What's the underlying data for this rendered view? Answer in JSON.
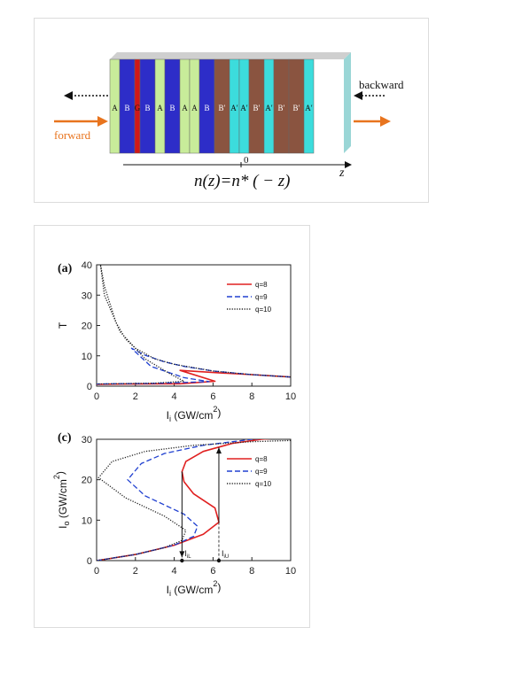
{
  "figure_top": {
    "layers": [
      "A",
      "B",
      "G",
      "B",
      "A",
      "B",
      "A",
      "A",
      "B",
      "B′",
      "A′",
      "A′",
      "B′",
      "A′",
      "B′",
      "B′",
      "A′"
    ],
    "layer_colors": {
      "A": "#c8ec9a",
      "B": "#2d2dc8",
      "G": "#d01818",
      "B′": "#8a5440",
      "A′": "#3cdcdc"
    },
    "label_backward": "backward",
    "label_forward": "forward",
    "axis_zero": "0",
    "axis_z": "z",
    "formula": "n(z)=n* ( − z)",
    "arrow_color": "#e8741e"
  },
  "chart_data": [
    {
      "type": "line",
      "panel_label": "(a)",
      "xlabel": "I",
      "xlabel_sub": "i",
      "xlabel_unit": " (GW/cm",
      "xlabel_sup": "2",
      "xlabel_close": ")",
      "ylabel": "T",
      "xlim": [
        0,
        10
      ],
      "ylim": [
        0,
        40
      ],
      "xticks": [
        "0",
        "2",
        "4",
        "6",
        "8",
        "10"
      ],
      "yticks": [
        "0",
        "10",
        "20",
        "30",
        "40"
      ],
      "legend": [
        "q=8",
        "q=9",
        "q=10"
      ],
      "series": [
        {
          "name": "q=8",
          "color": "#e02020",
          "dash": "solid",
          "x": [
            10,
            8,
            6,
            5,
            4.3,
            6.1,
            4.3,
            1.5,
            0
          ],
          "y": [
            3.0,
            3.8,
            4.5,
            4.9,
            5.2,
            1.6,
            0.8,
            0.7,
            0.6
          ]
        },
        {
          "name": "q=9",
          "color": "#2040d0",
          "dash": "dashed",
          "x": [
            10,
            8,
            6,
            4.5,
            3.5,
            2.5,
            1.8,
            2.8,
            4.5,
            5.8,
            3.0,
            1.0,
            0
          ],
          "y": [
            3.0,
            3.8,
            5.0,
            6.5,
            8.0,
            10.2,
            12.5,
            6.5,
            2.8,
            1.5,
            0.9,
            0.8,
            0.7
          ]
        },
        {
          "name": "q=10",
          "color": "#202020",
          "dash": "dotted",
          "x": [
            10,
            8,
            6,
            4,
            3,
            2,
            1.5,
            1.0,
            0.7,
            0.4,
            0.2,
            0.4,
            1.2,
            2.5,
            3.8,
            4.5,
            3.0,
            1.0,
            0
          ],
          "y": [
            3.0,
            3.8,
            5.0,
            7.2,
            9.0,
            12.5,
            15.5,
            21,
            27,
            33,
            40,
            30,
            18,
            9,
            4,
            1.6,
            1.0,
            0.8,
            0.7
          ]
        }
      ]
    },
    {
      "type": "line",
      "panel_label": "(c)",
      "xlabel": "I",
      "xlabel_sub": "i",
      "xlabel_unit": " (GW/cm",
      "xlabel_sup": "2",
      "xlabel_close": ")",
      "ylabel": "I",
      "ylabel_sub": "o",
      "ylabel_unit": " (GW/cm",
      "ylabel_sup": "2",
      "ylabel_close": ")",
      "xlim": [
        0,
        10
      ],
      "ylim": [
        0,
        30
      ],
      "xticks": [
        "0",
        "2",
        "4",
        "6",
        "8",
        "10"
      ],
      "yticks": [
        "0",
        "10",
        "20",
        "30"
      ],
      "legend": [
        "q=8",
        "q=9",
        "q=10"
      ],
      "annotations": [
        {
          "label": "I",
          "sub": "iL",
          "x": 4.4
        },
        {
          "label": "I",
          "sub": "iU",
          "x": 6.3
        }
      ],
      "series": [
        {
          "name": "q=8",
          "color": "#e02020",
          "dash": "solid",
          "x": [
            0,
            2,
            4,
            5.5,
            6.3,
            6.1,
            5.0,
            4.5,
            4.4,
            4.6,
            5.5,
            7.0,
            8.5,
            10
          ],
          "y": [
            0,
            1.5,
            3.8,
            6.5,
            9.5,
            13.0,
            16.5,
            19.5,
            22.0,
            24.5,
            27.0,
            29.0,
            30.0,
            30.5
          ]
        },
        {
          "name": "q=9",
          "color": "#2040d0",
          "dash": "dashed",
          "x": [
            0,
            2,
            4,
            5.0,
            5.2,
            4.5,
            2.5,
            1.6,
            2.3,
            3.5,
            5.5,
            8.0,
            9.5
          ],
          "y": [
            0,
            1.5,
            3.8,
            6.0,
            8.5,
            11.5,
            16.0,
            20.0,
            24.0,
            26.5,
            28.5,
            30.0,
            30.5
          ]
        },
        {
          "name": "q=10",
          "color": "#202020",
          "dash": "dotted",
          "x": [
            0,
            2,
            3.5,
            4.4,
            4.6,
            3.5,
            1.5,
            0.1,
            0.8,
            2.5,
            5.0,
            8.0,
            10
          ],
          "y": [
            0,
            1.5,
            3.2,
            5.0,
            7.5,
            11.0,
            15.5,
            20.5,
            24.5,
            27.0,
            28.5,
            29.4,
            29.7
          ]
        }
      ]
    }
  ]
}
